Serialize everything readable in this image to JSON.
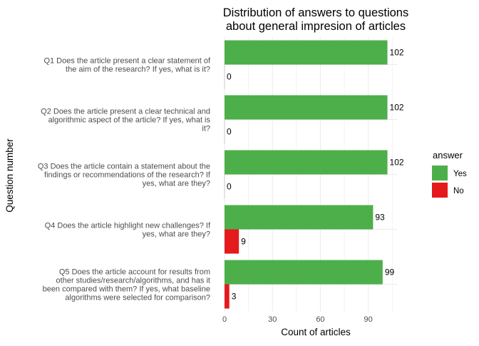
{
  "chart_data": {
    "type": "bar",
    "orientation": "horizontal",
    "title_lines": [
      "Distribution of answers to questions",
      "about general impresion of articles"
    ],
    "xlabel": "Count of articles",
    "ylabel": "Question number",
    "xlim": [
      0,
      108
    ],
    "x_ticks": [
      0,
      30,
      60,
      90
    ],
    "grid": true,
    "legend": {
      "title": "answer",
      "position": "right"
    },
    "categories": [
      {
        "id": "Q1",
        "label_lines": [
          "Q1 Does the article present a clear statement of",
          "the aim of the research? If yes, what is it?"
        ]
      },
      {
        "id": "Q2",
        "label_lines": [
          "Q2 Does the article present a clear technical and",
          "algorithmic aspect of the article? If yes, what is",
          "it?"
        ]
      },
      {
        "id": "Q3",
        "label_lines": [
          "Q3 Does the article contain a statement about the",
          "findings or recommendations of the research? If",
          "yes, what are they?"
        ]
      },
      {
        "id": "Q4",
        "label_lines": [
          "Q4 Does the article highlight new challenges? If",
          "yes, what are they?"
        ]
      },
      {
        "id": "Q5",
        "label_lines": [
          "Q5 Does the article account for results from",
          "other studies/research/algorithms, and has it",
          "been compared with them? If yes, what baseline",
          "algorithms were selected for comparison?"
        ]
      }
    ],
    "series": [
      {
        "name": "Yes",
        "color": "#4daf4a",
        "values": [
          102,
          102,
          102,
          93,
          99
        ]
      },
      {
        "name": "No",
        "color": "#e41a1c",
        "values": [
          0,
          0,
          0,
          9,
          3
        ]
      }
    ]
  }
}
